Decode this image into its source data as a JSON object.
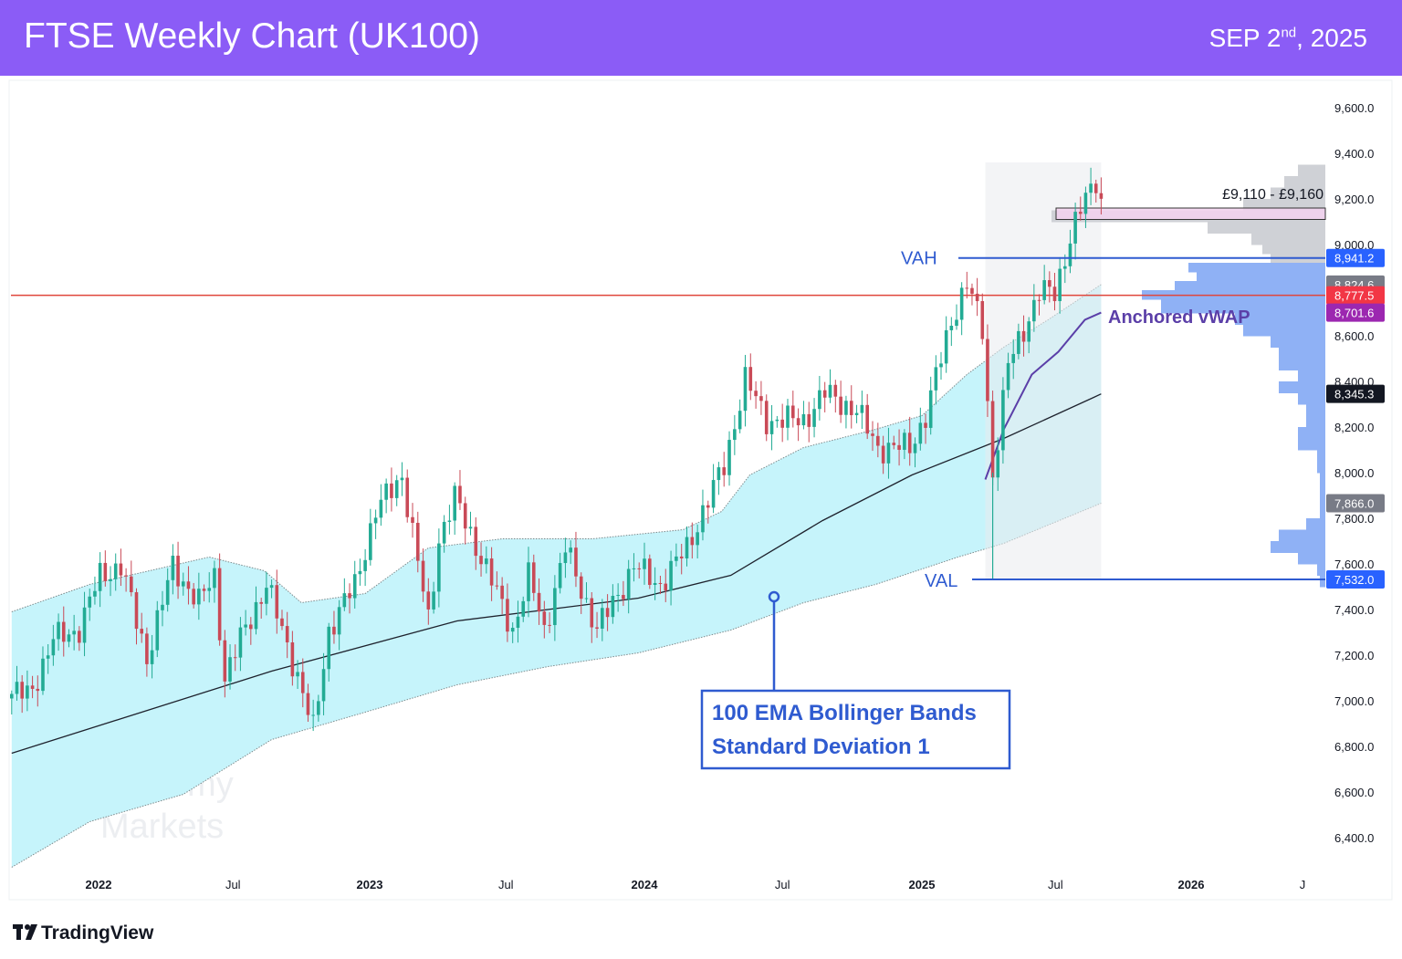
{
  "header": {
    "title": "FTSE Weekly Chart (UK100)",
    "date_main": "SEP 2",
    "date_sup": "nd",
    "date_year": ", 2025",
    "background": "#8b5cf6"
  },
  "footer": {
    "brand": "TradingView"
  },
  "watermark": {
    "line1": "Alchemy",
    "line2": "Markets"
  },
  "chart_data": {
    "type": "candlestick",
    "title": "FTSE Weekly Chart (UK100)",
    "interval": "weekly",
    "y_ticks": [
      "9,600.0",
      "9,400.0",
      "9,200.0",
      "9,000.0",
      "8,600.0",
      "8,400.0",
      "8,200.0",
      "8,000.0",
      "7,800.0",
      "7,600.0",
      "7,400.0",
      "7,200.0",
      "7,000.0",
      "6,800.0",
      "6,600.0",
      "6,400.0"
    ],
    "y_tick_values": [
      9600,
      9400,
      9200,
      9000,
      8600,
      8400,
      8200,
      8000,
      7800,
      7600,
      7400,
      7200,
      7000,
      6800,
      6600,
      6400
    ],
    "x_ticks": [
      {
        "label": "2022",
        "date": "2022-01-01"
      },
      {
        "label": "Jul",
        "date": "2022-07-01"
      },
      {
        "label": "2023",
        "date": "2023-01-01"
      },
      {
        "label": "Jul",
        "date": "2023-07-01"
      },
      {
        "label": "2024",
        "date": "2024-01-01"
      },
      {
        "label": "Jul",
        "date": "2024-07-01"
      },
      {
        "label": "2025",
        "date": "2025-01-01"
      },
      {
        "label": "Jul",
        "date": "2025-07-01"
      },
      {
        "label": "2026",
        "date": "2026-01-01"
      },
      {
        "label": "J",
        "date": "2026-06-01"
      }
    ],
    "ylim": [
      6250,
      9700
    ],
    "colors": {
      "up": "#22ab94",
      "down": "#c94a57",
      "band_fill": "#c6f4fb",
      "ema": "#1e222d",
      "vwap": "#5b3fa8",
      "vah_val": "#2f5bd0",
      "red_level": "#e0463c",
      "zone": "#f3d2f0"
    },
    "approx_weekly_closes": [
      [
        "2021-10-01",
        7030
      ],
      [
        "2021-11-01",
        7270
      ],
      [
        "2021-12-05",
        7310
      ],
      [
        "2022-01-03",
        7550
      ],
      [
        "2022-01-31",
        7590
      ],
      [
        "2022-03-07",
        7190
      ],
      [
        "2022-04-11",
        7590
      ],
      [
        "2022-05-16",
        7430
      ],
      [
        "2022-06-06",
        7550
      ],
      [
        "2022-06-20",
        7100
      ],
      [
        "2022-07-11",
        7270
      ],
      [
        "2022-08-15",
        7510
      ],
      [
        "2022-09-26",
        7110
      ],
      [
        "2022-10-17",
        6870
      ],
      [
        "2022-11-07",
        7310
      ],
      [
        "2022-12-12",
        7510
      ],
      [
        "2023-01-09",
        7830
      ],
      [
        "2023-02-13",
        7990
      ],
      [
        "2023-03-20",
        7350
      ],
      [
        "2023-04-03",
        7710
      ],
      [
        "2023-04-24",
        7890
      ],
      [
        "2023-05-29",
        7630
      ],
      [
        "2023-07-10",
        7310
      ],
      [
        "2023-08-01",
        7550
      ],
      [
        "2023-08-21",
        7310
      ],
      [
        "2023-09-18",
        7670
      ],
      [
        "2023-10-30",
        7310
      ],
      [
        "2023-12-18",
        7590
      ],
      [
        "2024-01-22",
        7510
      ],
      [
        "2024-02-26",
        7670
      ],
      [
        "2024-03-18",
        7830
      ],
      [
        "2024-04-15",
        8030
      ],
      [
        "2024-05-13",
        8410
      ],
      [
        "2024-06-10",
        8230
      ],
      [
        "2024-07-29",
        8230
      ],
      [
        "2024-08-26",
        8350
      ],
      [
        "2024-10-07",
        8270
      ],
      [
        "2024-11-04",
        8110
      ],
      [
        "2024-12-16",
        8110
      ],
      [
        "2025-01-06",
        8250
      ],
      [
        "2025-02-10",
        8670
      ],
      [
        "2025-03-03",
        8830
      ],
      [
        "2025-03-24",
        8630
      ],
      [
        "2025-04-07",
        7990
      ],
      [
        "2025-04-28",
        8470
      ],
      [
        "2025-05-19",
        8630
      ],
      [
        "2025-06-09",
        8790
      ],
      [
        "2025-06-30",
        8790
      ],
      [
        "2025-07-21",
        9030
      ],
      [
        "2025-08-04",
        9150
      ],
      [
        "2025-08-25",
        9290
      ],
      [
        "2025-09-01",
        9190
      ]
    ],
    "ema100": [
      [
        "2021-09-06",
        6770
      ],
      [
        "2022-08-22",
        7130
      ],
      [
        "2023-04-27",
        7350
      ],
      [
        "2023-12-24",
        7450
      ],
      [
        "2024-04-24",
        7550
      ],
      [
        "2024-08-23",
        7790
      ],
      [
        "2024-12-19",
        7990
      ],
      [
        "2025-04-22",
        8150
      ],
      [
        "2025-08-22",
        8330
      ],
      [
        "2025-09-01",
        8345.3
      ]
    ],
    "bollinger_upper": [
      [
        "2021-09-06",
        7390
      ],
      [
        "2021-12-20",
        7510
      ],
      [
        "2022-05-30",
        7630
      ],
      [
        "2022-08-12",
        7570
      ],
      [
        "2022-10-01",
        7430
      ],
      [
        "2022-12-26",
        7470
      ],
      [
        "2023-03-20",
        7670
      ],
      [
        "2023-06-26",
        7710
      ],
      [
        "2023-10-24",
        7710
      ],
      [
        "2024-02-21",
        7750
      ],
      [
        "2024-04-12",
        7830
      ],
      [
        "2024-05-19",
        7990
      ],
      [
        "2024-07-29",
        8110
      ],
      [
        "2024-11-01",
        8190
      ],
      [
        "2025-01-01",
        8250
      ],
      [
        "2025-03-03",
        8430
      ],
      [
        "2025-04-22",
        8550
      ],
      [
        "2025-06-21",
        8670
      ],
      [
        "2025-09-01",
        8824.6
      ]
    ],
    "bollinger_lower": [
      [
        "2021-09-06",
        6270
      ],
      [
        "2021-12-20",
        6470
      ],
      [
        "2022-04-25",
        6590
      ],
      [
        "2022-08-22",
        6830
      ],
      [
        "2022-12-26",
        6950
      ],
      [
        "2023-04-27",
        7070
      ],
      [
        "2023-08-26",
        7150
      ],
      [
        "2023-12-24",
        7210
      ],
      [
        "2024-04-24",
        7310
      ],
      [
        "2024-07-29",
        7430
      ],
      [
        "2024-11-01",
        7510
      ],
      [
        "2025-02-19",
        7630
      ],
      [
        "2025-04-22",
        7690
      ],
      [
        "2025-09-01",
        7866.0
      ]
    ],
    "anchored_vwap": [
      [
        "2025-03-28",
        7970
      ],
      [
        "2025-04-22",
        8190
      ],
      [
        "2025-05-30",
        8430
      ],
      [
        "2025-07-05",
        8530
      ],
      [
        "2025-08-10",
        8670
      ],
      [
        "2025-09-01",
        8701.6
      ]
    ],
    "volume_profile_anchor": "2025-03-28",
    "volume_profile": [
      [
        9350,
        0.1
      ],
      [
        9300,
        0.15
      ],
      [
        9250,
        0.2
      ],
      [
        9200,
        0.3
      ],
      [
        9150,
        1.0
      ],
      [
        9100,
        0.43
      ],
      [
        9050,
        0.27
      ],
      [
        9000,
        0.23
      ],
      [
        8960,
        0.2
      ],
      [
        8920,
        0.5
      ],
      [
        8880,
        0.47
      ],
      [
        8840,
        0.55
      ],
      [
        8800,
        0.67
      ],
      [
        8760,
        0.6
      ],
      [
        8700,
        0.33
      ],
      [
        8650,
        0.3
      ],
      [
        8600,
        0.2
      ],
      [
        8550,
        0.17
      ],
      [
        8500,
        0.17
      ],
      [
        8450,
        0.1
      ],
      [
        8400,
        0.17
      ],
      [
        8350,
        0.1
      ],
      [
        8300,
        0.07
      ],
      [
        8200,
        0.1
      ],
      [
        8100,
        0.03
      ],
      [
        8000,
        0.02
      ],
      [
        7900,
        0.02
      ],
      [
        7800,
        0.07
      ],
      [
        7750,
        0.17
      ],
      [
        7700,
        0.2
      ],
      [
        7650,
        0.1
      ],
      [
        7600,
        0.03
      ],
      [
        7550,
        0.02
      ]
    ],
    "levels": {
      "vah": {
        "label": "VAH",
        "value": 8941.2,
        "tag": "8,941.2",
        "color": "#2962ff"
      },
      "val": {
        "label": "VAL",
        "value": 7532.0,
        "tag": "7,532.0",
        "color": "#2962ff"
      },
      "red": {
        "value": 8777.5,
        "tag": "8,777.5",
        "color": "#f23645"
      },
      "upper_band": {
        "value": 8824.6,
        "tag": "8,824.6",
        "color": "#787b86"
      },
      "vwap": {
        "value": 8701.6,
        "tag": "8,701.6",
        "color": "#9c27b0"
      },
      "ema": {
        "value": 8345.3,
        "tag": "8,345.3",
        "color": "#131722"
      },
      "lower_band": {
        "value": 7866.0,
        "tag": "7,866.0",
        "color": "#787b86"
      }
    },
    "zone": {
      "low": 9110,
      "high": 9160,
      "label": "£9,110 - £9,160"
    },
    "annotations": {
      "vwap_label": "Anchored vWAP",
      "bb_line1": "100 EMA Bollinger Bands",
      "bb_line2": "Standard Deviation 1"
    }
  }
}
